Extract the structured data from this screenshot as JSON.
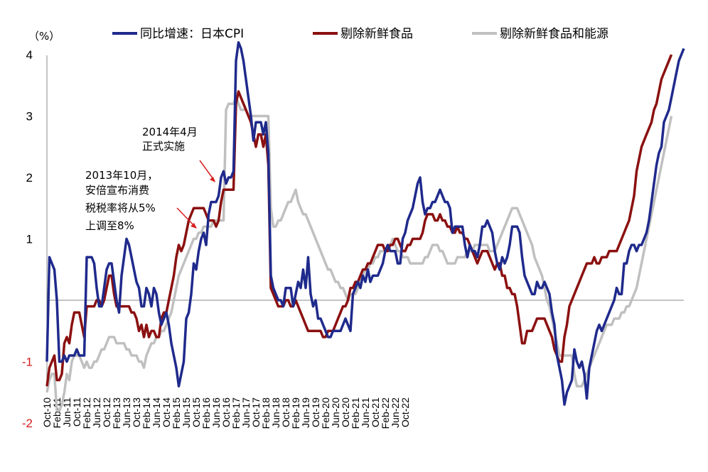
{
  "chart_data": {
    "type": "line",
    "ylabel": "（%）",
    "ylim": [
      -2,
      4.5
    ],
    "yticks": [
      4,
      3,
      2,
      1,
      -1,
      -2
    ],
    "grid": false,
    "legend_position": "top",
    "x_tick_labels": [
      "Oct-10",
      "Feb-11",
      "Jun-11",
      "Oct-11",
      "Feb-12",
      "Jun-12",
      "Oct-12",
      "Feb-13",
      "Jun-13",
      "Oct-13",
      "Feb-14",
      "Jun-14",
      "Oct-14",
      "Feb-15",
      "Jun-15",
      "Oct-15",
      "Feb-16",
      "Jun-16",
      "Oct-16",
      "Feb-17",
      "Jun-17",
      "Oct-17",
      "Feb-18",
      "Jun-18",
      "Oct-18",
      "Feb-19",
      "Jun-19",
      "Oct-19",
      "Feb-20",
      "Jun-20",
      "Oct-20",
      "Feb-21",
      "Jun-21",
      "Oct-21",
      "Feb-22",
      "Jun-22",
      "Oct-22"
    ],
    "x_start": "2010-10",
    "x_end": "2022-10",
    "series": [
      {
        "name": "同比增速：日本CPI",
        "color": "#1f2a8c",
        "values": [
          -1,
          0.7,
          0.6,
          0.5,
          0,
          -1,
          -1,
          -0.9,
          -1,
          -0.9,
          -0.9,
          -0.9,
          -0.8,
          -0.9,
          -0.9,
          -0.9,
          0.7,
          0.7,
          0.7,
          0.6,
          0.2,
          -0.1,
          -0.1,
          0.2,
          0.5,
          0.6,
          0.6,
          0.3,
          0,
          -0.2,
          0.4,
          0.7,
          1,
          0.9,
          0.7,
          0.5,
          0.3,
          0.2,
          -0.1,
          -0.1,
          0.2,
          0.1,
          -0.1,
          0.2,
          0.1,
          -0.2,
          -0.4,
          -0.3,
          -0.2,
          -0.4,
          -0.7,
          -0.9,
          -1.1,
          -1.4,
          -1.2,
          -1,
          -0.3,
          -0.2,
          0.1,
          0.6,
          0.5,
          0.8,
          1,
          1.1,
          0.9,
          1.4,
          1.6,
          1.6,
          1.6,
          1.7,
          2,
          2.1,
          1.9,
          2,
          2,
          2.1,
          3.9,
          4.2,
          4.1,
          3.9,
          3.6,
          3.3,
          3,
          2.6,
          2.9,
          2.9,
          2.9,
          2.7,
          2.9,
          2.4,
          0.4,
          0.2,
          0.1,
          0,
          0,
          -0.1,
          0.2,
          0.2,
          0.2,
          -0.1,
          0.1,
          0.3,
          0.2,
          0.5,
          0.2,
          0.7,
          0.1,
          -0.1,
          0,
          -0.3,
          -0.3,
          -0.4,
          -0.5,
          -0.6,
          -0.6,
          -0.5,
          -0.5,
          -0.5,
          -0.5,
          -0.4,
          -0.3,
          -0.4,
          -0.5,
          0.1,
          0.2,
          0.3,
          0.2,
          0.4,
          0.3,
          0.5,
          0.3,
          0.4,
          0.4,
          0.4,
          0.5,
          0.6,
          0.8,
          0.9,
          0.8,
          0.8,
          0.8,
          0.6,
          0.6,
          1,
          1.1,
          1.3,
          1.4,
          1.5,
          1.7,
          1.9,
          2,
          1.6,
          1.4,
          1.5,
          1.5,
          1.6,
          1.6,
          1.7,
          1.8,
          1.7,
          1.6,
          1.6,
          1.5,
          1.1,
          1.2,
          1.2,
          1.2,
          1.2,
          0.9,
          0.7,
          0.9,
          0.8,
          0.8,
          0.7,
          0.9,
          1.2,
          1.2,
          1.3,
          1.2,
          1.1,
          0.8,
          0.6,
          0.5,
          0.7,
          0.6,
          0.7,
          0.9,
          1.2,
          1.2,
          1.2,
          1.1,
          0.7,
          0.4,
          0.3,
          0.2,
          0.1,
          0.1,
          0.3,
          0.2,
          0.2,
          0.3,
          0.2,
          0.1,
          -0.2,
          -0.4,
          -0.9,
          -1.1,
          -1.3,
          -1.7,
          -1.5,
          -1.4,
          -1.3,
          -0.8,
          -1,
          -1.1,
          -1,
          -1.2,
          -1.6,
          -1.1,
          -0.9,
          -0.7,
          -0.5,
          -0.4,
          -0.5,
          -0.4,
          -0.3,
          -0.2,
          -0.1,
          0,
          0.2,
          0.1,
          0.1,
          0.6,
          0.6,
          0.8,
          0.9,
          0.9,
          0.8,
          0.9,
          0.9,
          1,
          1.1,
          1.3,
          1.6,
          1.9,
          2.2,
          2.4,
          2.5,
          2.9,
          3,
          3.1,
          3.3,
          3.5,
          3.7,
          3.9,
          4,
          4.1
        ]
      },
      {
        "name": "剔除新鲜食品",
        "color": "#8b1010",
        "values": [
          -1.4,
          -1.1,
          -1,
          -0.9,
          -1.3,
          -1.3,
          -1.2,
          -0.7,
          -0.6,
          -0.7,
          -0.4,
          -0.2,
          -0.2,
          -0.2,
          -0.4,
          -0.6,
          -0.1,
          -0.1,
          -0.1,
          -0.1,
          0,
          0,
          -0.1,
          0,
          0.2,
          0.4,
          0.4,
          0.1,
          -0.1,
          -0.1,
          -0.1,
          -0.1,
          -0.1,
          -0.1,
          -0.2,
          -0.2,
          -0.3,
          -0.5,
          -0.4,
          -0.6,
          -0.4,
          -0.6,
          -0.5,
          -0.5,
          -0.6,
          -0.6,
          -0.3,
          -0.2,
          -0.2,
          0,
          0.2,
          0.4,
          0.7,
          0.9,
          0.8,
          0.9,
          1.1,
          1.3,
          1.4,
          1.5,
          1.5,
          1.5,
          1.5,
          1.5,
          1.4,
          1.3,
          1.3,
          1.3,
          1.2,
          1.3,
          1.6,
          1.8,
          1.8,
          1.8,
          1.8,
          1.8,
          3.2,
          3.4,
          3.3,
          3.2,
          3.1,
          3,
          2.9,
          2.7,
          2.5,
          2.7,
          2.7,
          2.5,
          2.7,
          2.2,
          0.2,
          0.1,
          0,
          -0.1,
          -0.1,
          -0.1,
          0,
          0,
          -0.1,
          -0.1,
          0,
          -0.1,
          -0.2,
          -0.3,
          -0.4,
          -0.5,
          -0.5,
          -0.5,
          -0.5,
          -0.5,
          -0.5,
          -0.6,
          -0.6,
          -0.5,
          -0.5,
          -0.5,
          -0.4,
          -0.3,
          -0.2,
          -0.1,
          -0.1,
          0,
          0.2,
          0.2,
          0.3,
          0.3,
          0.4,
          0.5,
          0.5,
          0.6,
          0.6,
          0.7,
          0.8,
          0.9,
          0.9,
          0.9,
          0.8,
          0.8,
          0.9,
          0.9,
          1,
          1,
          0.9,
          0.8,
          0.8,
          0.9,
          0.9,
          1,
          1,
          1,
          1,
          1.1,
          1.3,
          1.4,
          1.4,
          1.4,
          1.3,
          1.3,
          1.4,
          1.3,
          1.3,
          1.2,
          1.2,
          1.1,
          1.1,
          1.2,
          1.1,
          1.1,
          1,
          1,
          0.9,
          0.8,
          0.7,
          0.6,
          0.7,
          0.8,
          0.8,
          0.8,
          0.7,
          0.6,
          0.5,
          0.6,
          0.6,
          0.4,
          0.4,
          0.2,
          0.2,
          0.1,
          0.1,
          -0.1,
          -0.4,
          -0.7,
          -0.7,
          -0.5,
          -0.5,
          -0.5,
          -0.4,
          -0.3,
          -0.3,
          -0.3,
          -0.3,
          -0.4,
          -0.5,
          -0.6,
          -0.8,
          -0.9,
          -1,
          -1,
          -0.6,
          -0.4,
          -0.1,
          0,
          0.1,
          0.2,
          0.3,
          0.4,
          0.5,
          0.6,
          0.6,
          0.6,
          0.7,
          0.6,
          0.6,
          0.7,
          0.7,
          0.7,
          0.8,
          0.8,
          0.8,
          0.8,
          0.9,
          1,
          1.1,
          1.2,
          1.3,
          1.5,
          1.7,
          2.1,
          2.3,
          2.5,
          2.6,
          2.7,
          2.8,
          2.9,
          3.1,
          3.2,
          3.4,
          3.6,
          3.7,
          3.8,
          3.9,
          4
        ]
      },
      {
        "name": "剔除新鲜食品和能源",
        "color": "#c0c0c0",
        "values": [
          -1.5,
          -1.3,
          -1.2,
          -1.2,
          -1.8,
          -1.8,
          -1.7,
          -1.5,
          -1.2,
          -1.3,
          -1,
          -0.9,
          -0.9,
          -0.9,
          -1,
          -1.1,
          -1,
          -1.1,
          -1.1,
          -1,
          -1,
          -0.9,
          -0.8,
          -0.8,
          -0.7,
          -0.6,
          -0.6,
          -0.6,
          -0.7,
          -0.7,
          -0.7,
          -0.7,
          -0.8,
          -0.8,
          -0.9,
          -0.9,
          -0.9,
          -1,
          -1,
          -1.1,
          -0.9,
          -0.8,
          -0.7,
          -0.7,
          -0.6,
          -0.6,
          -0.5,
          -0.5,
          -0.4,
          -0.3,
          -0.2,
          0,
          0.2,
          0.4,
          0.5,
          0.6,
          0.7,
          0.8,
          0.9,
          1,
          1,
          1.1,
          1.1,
          1.2,
          1.2,
          1.2,
          1.2,
          1.3,
          1.3,
          1.3,
          1.3,
          1.3,
          3.1,
          3.2,
          3.2,
          3.2,
          3.3,
          3.2,
          3.1,
          3.1,
          3.1,
          3,
          3,
          3,
          3,
          3,
          3,
          3,
          3,
          3,
          1.5,
          1.2,
          1.2,
          1.3,
          1.3,
          1.4,
          1.5,
          1.6,
          1.6,
          1.7,
          1.8,
          1.6,
          1.5,
          1.4,
          1.4,
          1.3,
          1.2,
          1.1,
          1,
          0.9,
          0.8,
          0.7,
          0.6,
          0.5,
          0.5,
          0.4,
          0.3,
          0.3,
          0.2,
          0.2,
          0.1,
          0,
          0.1,
          0.1,
          0.1,
          0.2,
          0.3,
          0.4,
          0.5,
          0.5,
          0.6,
          0.6,
          0.7,
          0.7,
          0.8,
          0.8,
          0.8,
          0.9,
          0.9,
          1,
          0.9,
          0.8,
          0.8,
          0.7,
          0.7,
          0.7,
          0.6,
          0.6,
          0.6,
          0.6,
          0.6,
          0.6,
          0.7,
          0.7,
          0.8,
          0.9,
          0.9,
          0.9,
          0.8,
          0.8,
          0.7,
          0.6,
          0.6,
          0.6,
          0.6,
          0.7,
          0.7,
          0.7,
          0.7,
          0.8,
          0.8,
          0.8,
          0.9,
          0.9,
          0.9,
          0.9,
          0.9,
          0.9,
          0.8,
          0.8,
          0.8,
          0.9,
          1,
          1.1,
          1.2,
          1.3,
          1.4,
          1.5,
          1.5,
          1.5,
          1.4,
          1.3,
          1.2,
          1.1,
          1,
          0.9,
          0.7,
          0.6,
          0.5,
          0.4,
          0.2,
          0,
          -0.1,
          -0.3,
          -0.5,
          -0.7,
          -0.9,
          -0.9,
          -0.9,
          -0.9,
          -0.9,
          -0.9,
          -1.2,
          -1.4,
          -1.4,
          -1.4,
          -1.3,
          -1.2,
          -1.1,
          -1,
          -0.9,
          -0.8,
          -0.7,
          -0.6,
          -0.5,
          -0.4,
          -0.4,
          -0.4,
          -0.3,
          -0.3,
          -0.3,
          -0.2,
          -0.2,
          -0.1,
          -0.1,
          0,
          0.1,
          0.2,
          0.4,
          0.6,
          0.8,
          1,
          1.2,
          1.4,
          1.6,
          1.8,
          2,
          2.2,
          2.4,
          2.6,
          2.8,
          3
        ]
      }
    ],
    "annotations": [
      {
        "lines": [
          "2014年4月",
          "正式实施"
        ]
      },
      {
        "lines": [
          "2013年10月，",
          "安倍宣布消费",
          "税税率将从5%",
          "上调至8%"
        ]
      }
    ]
  }
}
